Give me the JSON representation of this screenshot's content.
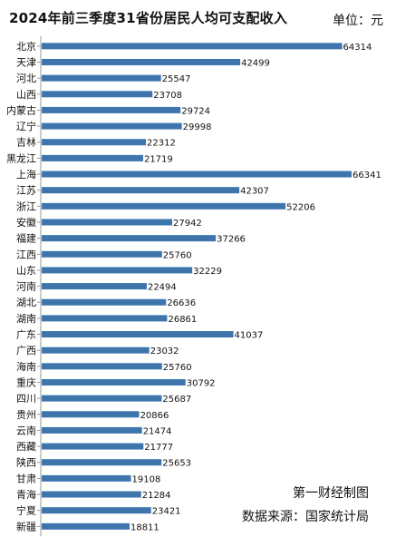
{
  "chart_data": {
    "type": "bar",
    "orientation": "horizontal",
    "title": "2024年前三季度31省份居民人均可支配收入",
    "unit": "单位：元",
    "bar_color": "#3f75ad",
    "axis_color": "#999999",
    "categories": [
      "北京",
      "天津",
      "河北",
      "山西",
      "内蒙古",
      "辽宁",
      "吉林",
      "黑龙江",
      "上海",
      "江苏",
      "浙江",
      "安徽",
      "福建",
      "江西",
      "山东",
      "河南",
      "湖北",
      "湖南",
      "广东",
      "广西",
      "海南",
      "重庆",
      "四川",
      "贵州",
      "云南",
      "西藏",
      "陕西",
      "甘肃",
      "青海",
      "宁夏",
      "新疆"
    ],
    "values": [
      64314,
      42499,
      25547,
      23708,
      29724,
      29998,
      22312,
      21719,
      66341,
      42307,
      52206,
      27942,
      37266,
      25760,
      32229,
      22494,
      26636,
      26861,
      41037,
      23032,
      25760,
      30792,
      25687,
      20866,
      21474,
      21777,
      25653,
      19108,
      21284,
      23421,
      18811
    ]
  },
  "footer": {
    "credit": "第一财经制图",
    "source": "数据来源：国家统计局"
  }
}
